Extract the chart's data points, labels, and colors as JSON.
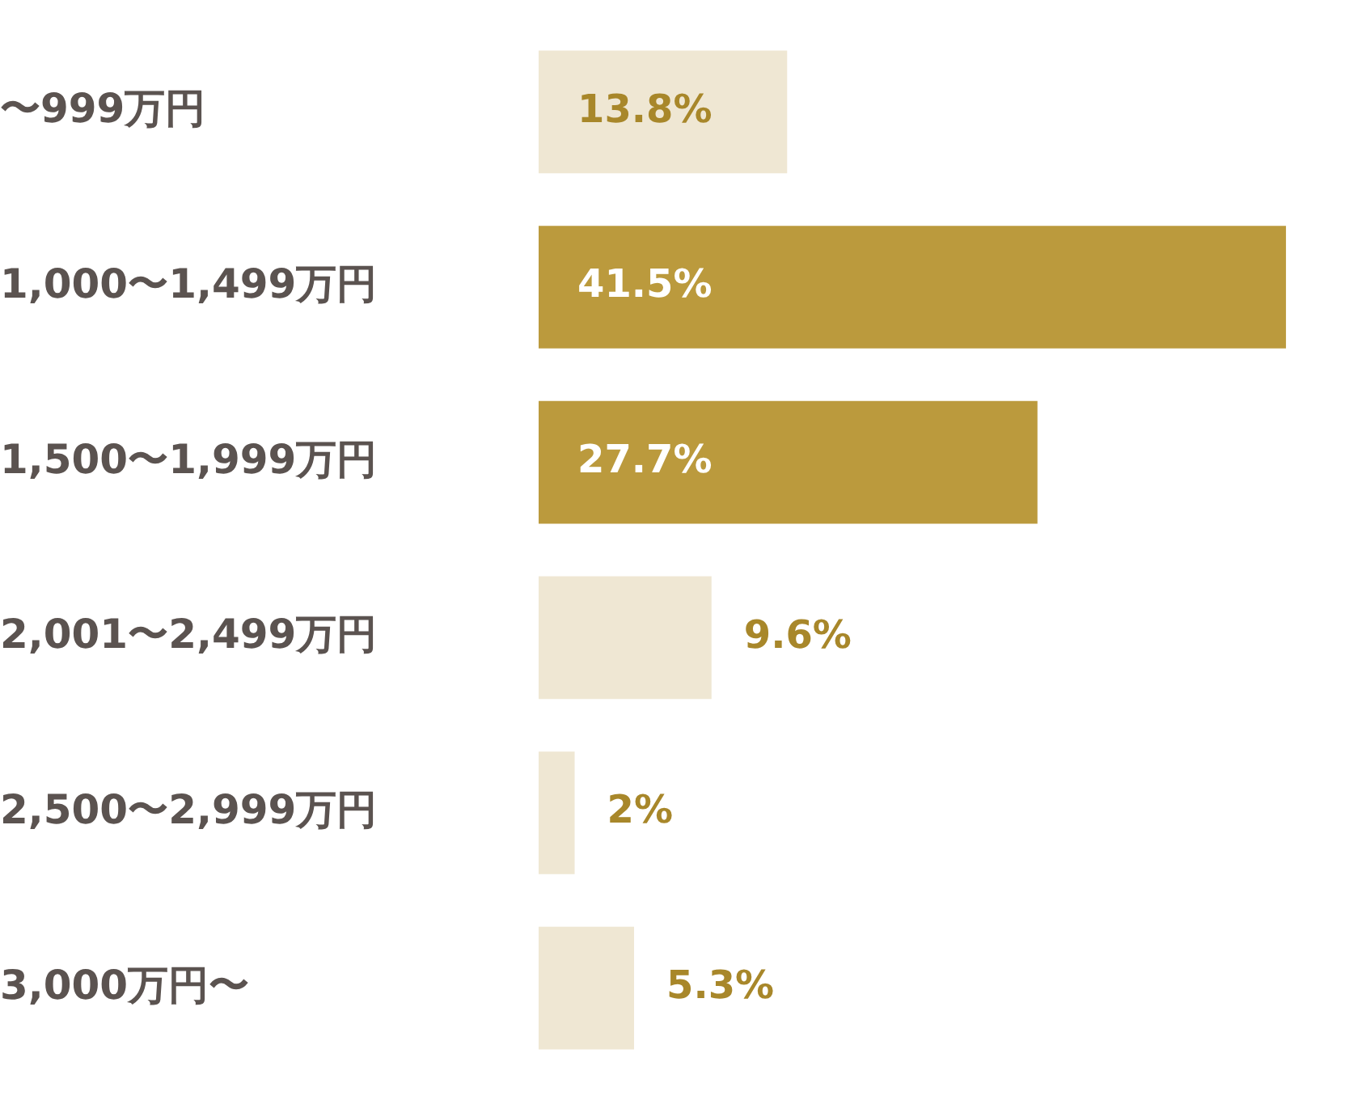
{
  "chart_data": {
    "type": "bar",
    "orientation": "horizontal",
    "categories": [
      "〜999万円",
      "1,000〜1,499万円",
      "1,500〜1,999万円",
      "2,001〜2,499万円",
      "2,500〜2,999万円",
      "3,000万円〜"
    ],
    "values": [
      13.8,
      41.5,
      27.7,
      9.6,
      2,
      5.3
    ],
    "colors": [
      "#efe7d3",
      "#bb9a3d",
      "#bb9a3d",
      "#efe7d3",
      "#efe7d3",
      "#efe7d3"
    ],
    "value_labels": [
      "13.8%",
      "41.5%",
      "27.7%",
      "9.6%",
      "2%",
      "5.3%"
    ],
    "grid": false,
    "legend": false,
    "tick_labels": "y"
  }
}
